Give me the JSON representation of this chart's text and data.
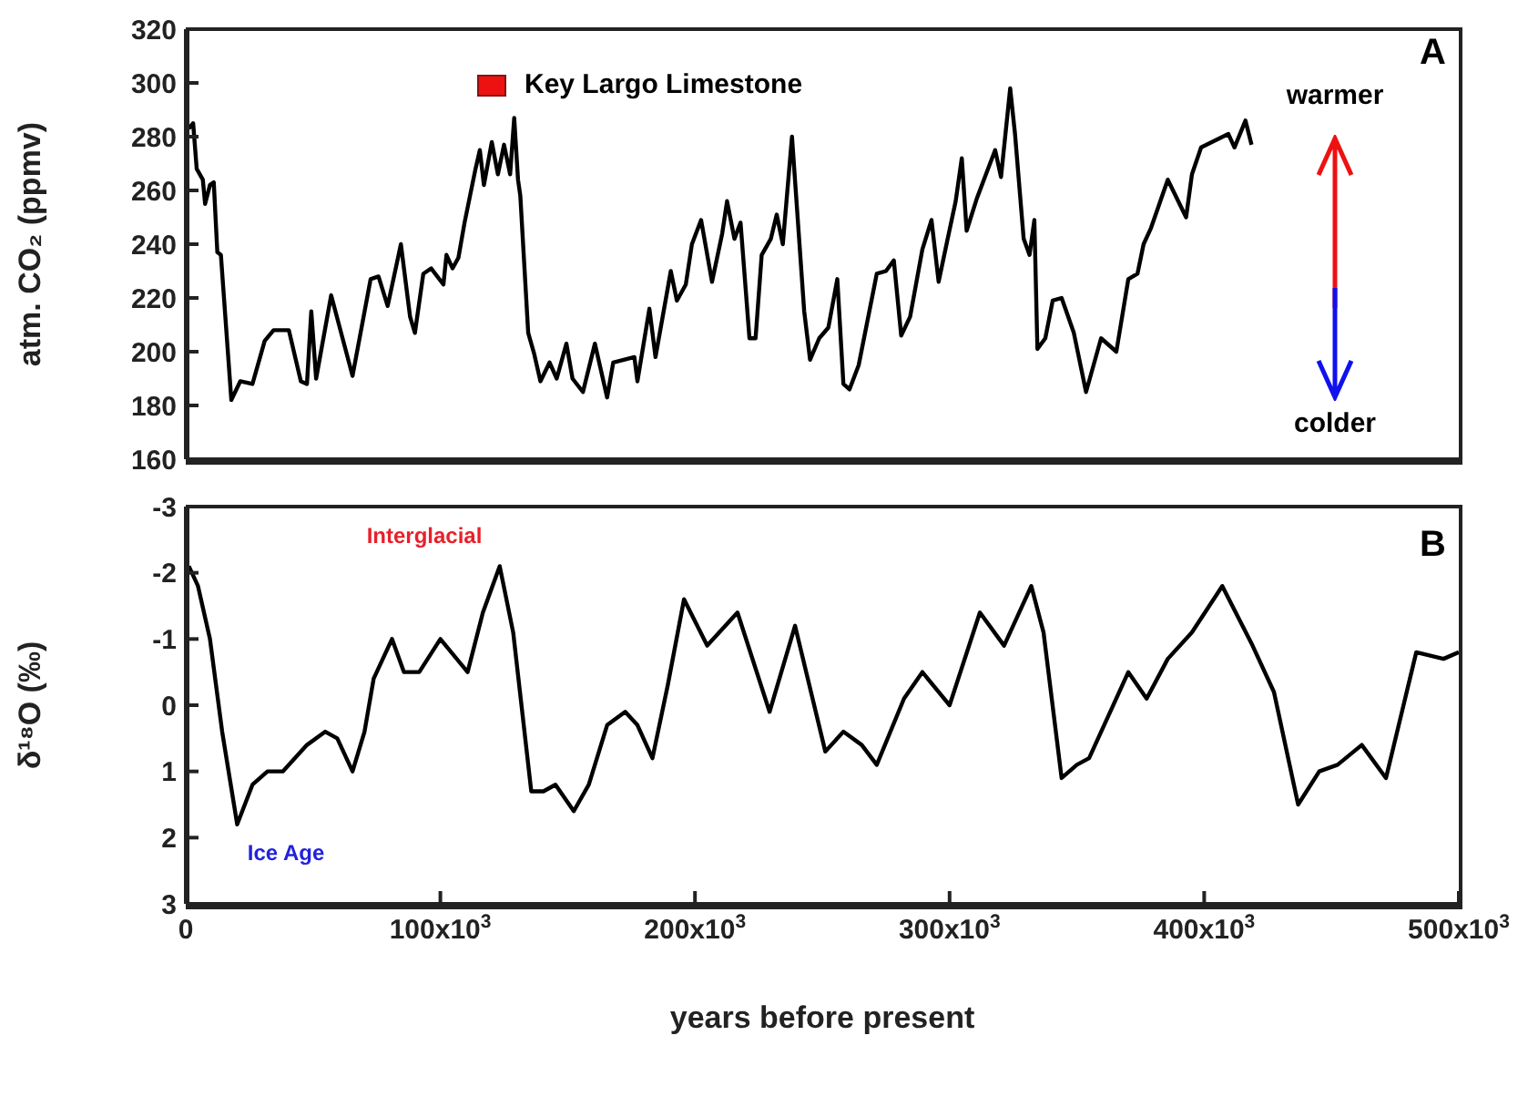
{
  "chart_data": [
    {
      "type": "line",
      "ylabel": "atm. CO₂ (ppmv)",
      "xlim": [
        0,
        500000
      ],
      "xticks": [
        {
          "value": 0,
          "label": null
        },
        {
          "value": 100000,
          "label": null
        },
        {
          "value": 200000,
          "label": null
        },
        {
          "value": 300000,
          "label": null
        },
        {
          "value": 400000,
          "label": null
        },
        {
          "value": 500000,
          "label": null
        }
      ],
      "ylim": [
        160,
        320
      ],
      "yticks": [
        160,
        180,
        200,
        220,
        240,
        260,
        280,
        300,
        320
      ],
      "tick_labels": "y",
      "marker": "none",
      "line_style": "solid",
      "annotations": [
        "Key Largo Limestone",
        "A",
        "warmer",
        "colder"
      ],
      "series": [
        {
          "color": "#000000",
          "x": [
            1200,
            2900,
            4300,
            6700,
            7600,
            9500,
            11000,
            12400,
            13800,
            17900,
            21400,
            26200,
            31000,
            34500,
            40500,
            45200,
            47600,
            49300,
            51200,
            57100,
            65500,
            72600,
            75700,
            79300,
            84500,
            88100,
            90000,
            93300,
            96400,
            101200,
            102400,
            104800,
            107100,
            109500,
            113800,
            115500,
            117100,
            120200,
            122600,
            125000,
            127400,
            129000,
            130500,
            131400,
            134500,
            136900,
            139300,
            142900,
            145700,
            149500,
            151900,
            156000,
            160700,
            165500,
            167900,
            176200,
            177400,
            182100,
            184500,
            190500,
            192900,
            196400,
            198800,
            202400,
            206700,
            210700,
            212600,
            215500,
            217900,
            221400,
            223800,
            226200,
            229800,
            232100,
            234500,
            238100,
            242900,
            245200,
            248800,
            252400,
            255900,
            258300,
            260700,
            264300,
            271400,
            275000,
            278100,
            281000,
            284500,
            289300,
            292900,
            295700,
            298800,
            302400,
            304800,
            306700,
            310700,
            314300,
            317900,
            320200,
            323800,
            325700,
            329100,
            331400,
            333300,
            334500,
            337600,
            340500,
            344000,
            348800,
            353600,
            359500,
            365500,
            370200,
            373800,
            376200,
            379100,
            385700,
            392900,
            395200,
            398800,
            409500,
            411900,
            416200,
            418600
          ],
          "values": [
            283,
            285,
            268,
            264,
            255,
            262,
            263,
            237,
            236,
            182,
            189,
            188,
            204,
            208,
            208,
            189,
            188,
            215,
            190,
            221,
            191,
            227,
            228,
            217,
            240,
            213,
            207,
            229,
            231,
            225,
            236,
            231,
            235,
            248,
            268,
            275,
            262,
            278,
            266,
            277,
            266,
            287,
            264,
            258,
            207,
            199,
            189,
            196,
            190,
            203,
            190,
            185,
            203,
            183,
            196,
            198,
            189,
            216,
            198,
            230,
            219,
            225,
            240,
            249,
            226,
            244,
            256,
            242,
            248,
            205,
            205,
            236,
            242,
            251,
            240,
            280,
            215,
            197,
            205,
            209,
            227,
            188,
            186,
            195,
            229,
            230,
            234,
            206,
            213,
            238,
            249,
            226,
            240,
            256,
            272,
            245,
            257,
            266,
            275,
            265,
            298,
            281,
            242,
            236,
            249,
            201,
            205,
            219,
            220,
            207,
            185,
            205,
            200,
            227,
            229,
            240,
            246,
            264,
            250,
            266,
            276,
            281,
            276,
            286,
            277
          ]
        }
      ]
    },
    {
      "type": "line",
      "xlabel": "years before present",
      "ylabel": "δ¹⁸O (‰)",
      "xlim": [
        0,
        500000
      ],
      "xticks": [
        0,
        {
          "value": 100000,
          "label": "100x10$^{3}$"
        },
        {
          "value": 200000,
          "label": "200x10$^{3}$"
        },
        {
          "value": 300000,
          "label": "300x10$^{3}$"
        },
        {
          "value": 400000,
          "label": "400x10$^{3}$"
        },
        {
          "value": 500000,
          "label": "500x10$^{3}$"
        }
      ],
      "ylim": [
        3,
        -3
      ],
      "yticks": [
        -3,
        -2,
        -1,
        0,
        1,
        2,
        3
      ],
      "marker": "none",
      "line_style": "solid",
      "annotations": [
        "B",
        "Interglacial",
        "Ice Age"
      ],
      "series": [
        {
          "color": "#000000",
          "x": [
            1200,
            4800,
            9500,
            14300,
            20200,
            26200,
            32100,
            38100,
            47600,
            54800,
            59500,
            65500,
            70200,
            73800,
            81000,
            85700,
            91700,
            100000,
            110700,
            116700,
            123300,
            128600,
            135700,
            140500,
            145200,
            152400,
            158300,
            165500,
            172600,
            177400,
            183300,
            189300,
            195700,
            204800,
            216700,
            229300,
            239300,
            251200,
            258300,
            265500,
            271400,
            282100,
            289300,
            300000,
            311900,
            321400,
            332100,
            336900,
            344000,
            350000,
            354800,
            370200,
            377400,
            385700,
            395200,
            407100,
            419000,
            427400,
            436900,
            445200,
            452400,
            461900,
            471400,
            483300,
            494000,
            500000
          ],
          "values": [
            -2.1,
            -1.8,
            -1.0,
            0.4,
            1.8,
            1.2,
            1.0,
            1.0,
            0.6,
            0.4,
            0.5,
            1.0,
            0.4,
            -0.4,
            -1.0,
            -0.5,
            -0.5,
            -1.0,
            -0.5,
            -1.4,
            -2.1,
            -1.1,
            1.3,
            1.3,
            1.2,
            1.6,
            1.2,
            0.3,
            0.1,
            0.3,
            0.8,
            -0.3,
            -1.6,
            -0.9,
            -1.4,
            0.1,
            -1.2,
            0.7,
            0.4,
            0.6,
            0.9,
            -0.1,
            -0.5,
            0.0,
            -1.4,
            -0.9,
            -1.8,
            -1.1,
            1.1,
            0.9,
            0.8,
            -0.5,
            -0.1,
            -0.7,
            -1.1,
            -1.8,
            -0.9,
            -0.2,
            1.5,
            1.0,
            0.9,
            0.6,
            1.1,
            -0.8,
            -0.7,
            -0.8
          ]
        }
      ]
    }
  ]
}
